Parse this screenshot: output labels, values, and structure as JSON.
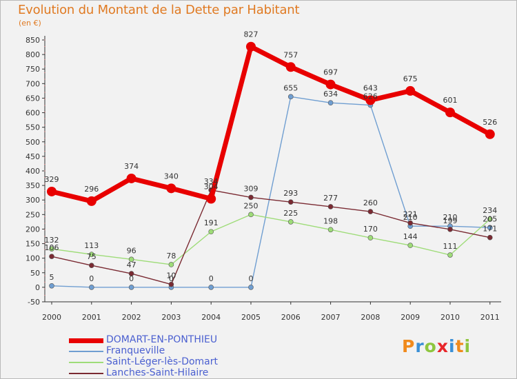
{
  "title": "Evolution du Montant de la Dette par Habitant",
  "unit": "(en €)",
  "logo": {
    "text": "Proxiti",
    "letters": [
      {
        "ch": "P",
        "color": "#f08a1c"
      },
      {
        "ch": "r",
        "color": "#3a8fd6"
      },
      {
        "ch": "o",
        "color": "#8ec63f"
      },
      {
        "ch": "x",
        "color": "#e8262a"
      },
      {
        "ch": "i",
        "color": "#3a8fd6"
      },
      {
        "ch": "t",
        "color": "#f08a1c"
      },
      {
        "ch": "i",
        "color": "#8ec63f"
      }
    ]
  },
  "chart_data": {
    "type": "line",
    "title": "Evolution du Montant de la Dette par Habitant",
    "ylabel": "(en €)",
    "xlabel": "",
    "x": [
      "2000",
      "2001",
      "2002",
      "2003",
      "2004",
      "2005",
      "2006",
      "2007",
      "2008",
      "2009",
      "2010",
      "2011"
    ],
    "ylim": [
      -50,
      850
    ],
    "yticks": [
      -50,
      0,
      50,
      100,
      150,
      200,
      250,
      300,
      350,
      400,
      450,
      500,
      550,
      600,
      650,
      700,
      750,
      800,
      850
    ],
    "grid": false,
    "legend_position": "bottom-left",
    "series": [
      {
        "name": "DOMART-EN-PONTHIEU",
        "color": "#e80000",
        "values": [
          329,
          296,
          374,
          340,
          304,
          827,
          757,
          697,
          643,
          675,
          601,
          526
        ],
        "labels": [
          "329",
          "296",
          "374",
          "340",
          "304",
          "827",
          "757",
          "697",
          "643",
          "675",
          "601",
          "526"
        ]
      },
      {
        "name": "Franqueville",
        "color": "#6f9ed1",
        "values": [
          5,
          0,
          0,
          0,
          0,
          0,
          655,
          634,
          626,
          210,
          210,
          205
        ],
        "labels": [
          "5",
          "0",
          "0",
          "0",
          "0",
          "0",
          "655",
          "634",
          "626",
          "210",
          "210",
          "205"
        ]
      },
      {
        "name": "Saint-Léger-lès-Domart",
        "color": "#9edc78",
        "values": [
          132,
          113,
          96,
          78,
          191,
          250,
          225,
          198,
          170,
          144,
          111,
          234
        ],
        "labels": [
          "132",
          "113",
          "96",
          "78",
          "191",
          "250",
          "225",
          "198",
          "170",
          "144",
          "111",
          "234"
        ]
      },
      {
        "name": "Lanches-Saint-Hilaire",
        "color": "#7a2a32",
        "values": [
          106,
          75,
          47,
          10,
          334,
          309,
          293,
          277,
          260,
          221,
          199,
          171
        ],
        "labels": [
          "106",
          "75",
          "47",
          "10",
          "334",
          "309",
          "293",
          "277",
          "260",
          "221",
          "199",
          "171"
        ]
      }
    ]
  }
}
